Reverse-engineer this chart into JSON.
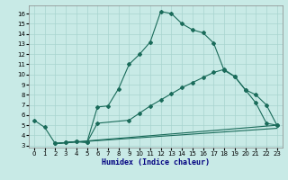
{
  "xlabel": "Humidex (Indice chaleur)",
  "bg_color": "#c8eae6",
  "grid_color": "#a8d4cf",
  "line_color": "#1a6b5a",
  "xlim": [
    -0.5,
    23.5
  ],
  "ylim": [
    2.8,
    16.8
  ],
  "yticks": [
    3,
    4,
    5,
    6,
    7,
    8,
    9,
    10,
    11,
    12,
    13,
    14,
    15,
    16
  ],
  "xticks": [
    0,
    1,
    2,
    3,
    4,
    5,
    6,
    7,
    8,
    9,
    10,
    11,
    12,
    13,
    14,
    15,
    16,
    17,
    18,
    19,
    20,
    21,
    22,
    23
  ],
  "curve1_x": [
    0,
    1,
    2,
    3,
    4,
    5,
    6,
    7,
    8,
    9,
    10,
    11,
    12,
    13,
    14,
    15,
    16,
    17,
    18,
    19,
    20,
    21,
    22,
    23
  ],
  "curve1_y": [
    5.5,
    4.8,
    3.2,
    3.3,
    3.4,
    3.3,
    6.8,
    6.9,
    8.6,
    11.0,
    12.0,
    13.2,
    16.2,
    16.0,
    15.0,
    14.4,
    14.1,
    13.1,
    10.4,
    9.8,
    8.5,
    7.2,
    5.2,
    5.0
  ],
  "curve2_x": [
    2,
    3,
    4,
    5,
    6,
    9,
    10,
    11,
    12,
    13,
    14,
    15,
    16,
    17,
    18,
    19,
    20,
    21,
    22,
    23
  ],
  "curve2_y": [
    3.2,
    3.3,
    3.4,
    3.3,
    5.2,
    5.5,
    6.2,
    6.9,
    7.5,
    8.1,
    8.7,
    9.2,
    9.7,
    10.2,
    10.5,
    9.8,
    8.5,
    8.0,
    7.0,
    5.0
  ],
  "line3_x": [
    2,
    23
  ],
  "line3_y": [
    3.2,
    5.0
  ],
  "line4_x": [
    2,
    23
  ],
  "line4_y": [
    3.2,
    4.7
  ]
}
